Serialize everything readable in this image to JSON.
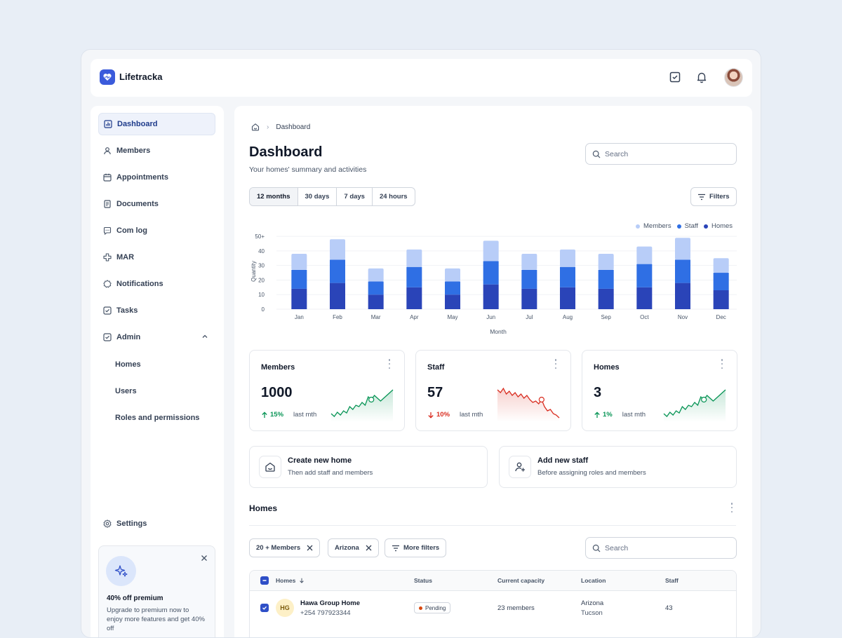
{
  "app": {
    "name": "Lifetracka"
  },
  "topbar": {
    "icons": [
      "tasks-check-icon",
      "bell-icon"
    ],
    "avatar": "user-avatar"
  },
  "sidebar": {
    "items": [
      {
        "label": "Dashboard",
        "icon": "bar-chart-icon",
        "active": true
      },
      {
        "label": "Members",
        "icon": "user-icon"
      },
      {
        "label": "Appointments",
        "icon": "calendar-icon"
      },
      {
        "label": "Documents",
        "icon": "document-icon"
      },
      {
        "label": "Com log",
        "icon": "chat-icon"
      },
      {
        "label": "MAR",
        "icon": "medical-cross-icon"
      },
      {
        "label": "Notifications",
        "icon": "gear-badge-icon"
      },
      {
        "label": "Tasks",
        "icon": "check-square-icon"
      },
      {
        "label": "Admin",
        "icon": "check-square-icon",
        "expanded": true
      }
    ],
    "admin_sub": [
      "Homes",
      "Users",
      "Roles and permissions"
    ],
    "settings": "Settings",
    "promo": {
      "title": "40% off premium",
      "text": "Upgrade to premium now to enjoy more features and get 40% off"
    }
  },
  "main": {
    "breadcrumb": "Dashboard",
    "title": "Dashboard",
    "subtitle": "Your homes' summary and activities",
    "search_placeholder": "Search",
    "ranges": [
      "12 months",
      "30 days",
      "7 days",
      "24 hours"
    ],
    "selected_range": "12 months",
    "filters_label": "Filters"
  },
  "chart_data": {
    "type": "bar",
    "stacked": true,
    "categories": [
      "Jan",
      "Feb",
      "Mar",
      "Apr",
      "May",
      "Jun",
      "Jul",
      "Aug",
      "Sep",
      "Oct",
      "Nov",
      "Dec"
    ],
    "series": [
      {
        "name": "Homes",
        "color": "#2a44b8",
        "values": [
          14,
          18,
          10,
          15,
          10,
          17,
          14,
          15,
          14,
          15,
          18,
          13
        ]
      },
      {
        "name": "Staff",
        "color": "#2f6fe4",
        "values": [
          13,
          16,
          9,
          14,
          9,
          16,
          13,
          14,
          13,
          16,
          16,
          12
        ]
      },
      {
        "name": "Members",
        "color": "#b8cdf8",
        "values": [
          11,
          14,
          9,
          12,
          9,
          14,
          11,
          12,
          11,
          12,
          15,
          10
        ]
      }
    ],
    "legend_order": [
      "Members",
      "Staff",
      "Homes"
    ],
    "ylabel": "Quantity",
    "xlabel": "Month",
    "yticks": [
      "0",
      "10",
      "20",
      "30",
      "40",
      "50+"
    ],
    "ylim": [
      0,
      50
    ],
    "legend_position": "top-right"
  },
  "stats": [
    {
      "title": "Members",
      "value": "1000",
      "change": "15%",
      "direction": "up",
      "period": "last mth",
      "color": "#079455"
    },
    {
      "title": "Staff",
      "value": "57",
      "change": "10%",
      "direction": "down",
      "period": "last mth",
      "color": "#d92d20"
    },
    {
      "title": "Homes",
      "value": "3",
      "change": "1%",
      "direction": "up",
      "period": "last mth",
      "color": "#079455"
    }
  ],
  "actions": [
    {
      "title": "Create new home",
      "subtitle": "Then add staff and members",
      "icon": "home-icon"
    },
    {
      "title": "Add new staff",
      "subtitle": "Before assigning roles and members",
      "icon": "user-plus-icon"
    }
  ],
  "homes": {
    "title": "Homes",
    "filters": [
      "20 + Members",
      "Arizona"
    ],
    "more_filters": "More filters",
    "search_placeholder": "Search",
    "columns": [
      "Homes",
      "Status",
      "Current capacity",
      "Location",
      "Staff"
    ],
    "rows": [
      {
        "initials": "HG",
        "name": "Hawa Group Home",
        "phone": "+254 797923344",
        "status": "Pending",
        "capacity": "23 members",
        "location": "Arizona",
        "city": "Tucson",
        "staff": "43"
      }
    ]
  }
}
